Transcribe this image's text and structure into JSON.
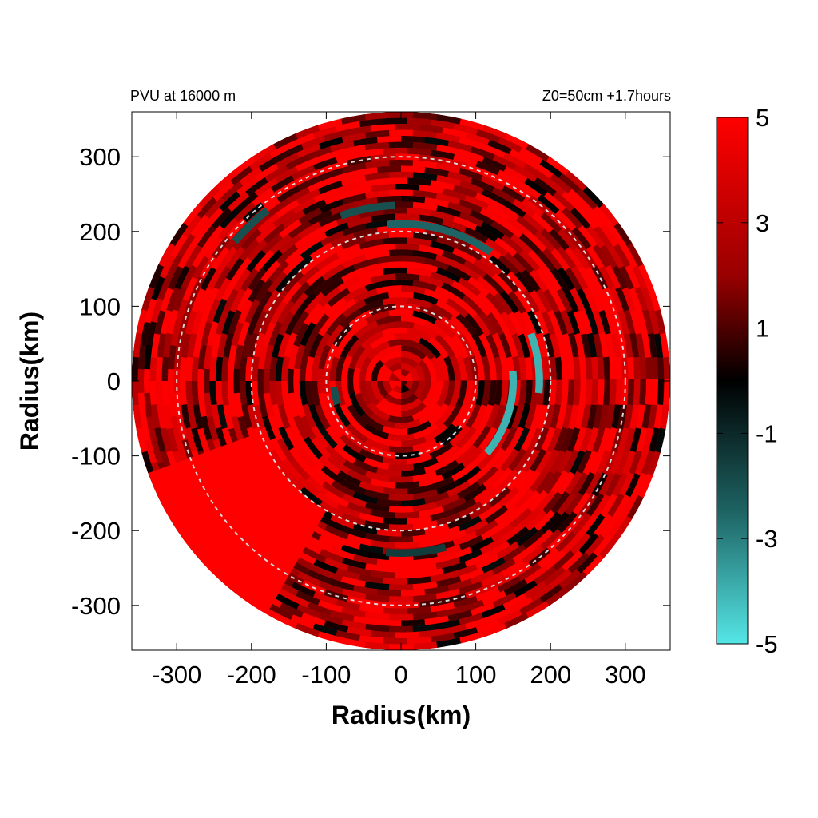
{
  "chart_data": {
    "type": "heatmap",
    "title_left": "PVU at 16000 m",
    "title_right": "Z0=50cm  +1.7hours",
    "xlabel": "Radius(km)",
    "ylabel": "Radius(km)",
    "xlim": [
      -360,
      360
    ],
    "ylim": [
      -360,
      360
    ],
    "xticks": [
      -300,
      -200,
      -100,
      0,
      100,
      200,
      300
    ],
    "yticks": [
      300,
      200,
      100,
      0,
      -100,
      -200,
      -300
    ],
    "xtick_labels": [
      "-300",
      "-200",
      "-100",
      "0",
      "100",
      "200",
      "300"
    ],
    "ytick_labels": [
      "300",
      "200",
      "100",
      "0",
      "-100",
      "-200",
      "-300"
    ],
    "domain_radius": 360,
    "reference_circles_radii": [
      100,
      200,
      300
    ],
    "colorbar": {
      "range": [
        -5,
        5
      ],
      "ticks": [
        5,
        3,
        1,
        -1,
        -3,
        -5
      ],
      "tick_labels": [
        "5",
        "3",
        "1",
        "-1",
        "-3",
        "-5"
      ],
      "colors": {
        "low": "#55e6e6",
        "mid": "#000000",
        "high": "#ff0000"
      }
    },
    "negative_features": [
      {
        "r": 150,
        "theta_start": 5,
        "theta_end": -40,
        "value": -4
      },
      {
        "r": 185,
        "theta_start": 20,
        "theta_end": -5,
        "value": -4
      },
      {
        "r": 210,
        "theta_start": 95,
        "theta_end": 55,
        "value": -2.5
      },
      {
        "r": 235,
        "theta_start": 110,
        "theta_end": 92,
        "value": -2
      },
      {
        "r": 290,
        "theta_start": 140,
        "theta_end": 128,
        "value": -2
      },
      {
        "r": 90,
        "theta_start": 200,
        "theta_end": 185,
        "value": -2
      },
      {
        "r": 230,
        "theta_start": -75,
        "theta_end": -95,
        "value": -1.5
      }
    ],
    "high_patch": {
      "r_min": 200,
      "r_max": 360,
      "theta_start": 200,
      "theta_end": 240,
      "value": 5
    }
  }
}
